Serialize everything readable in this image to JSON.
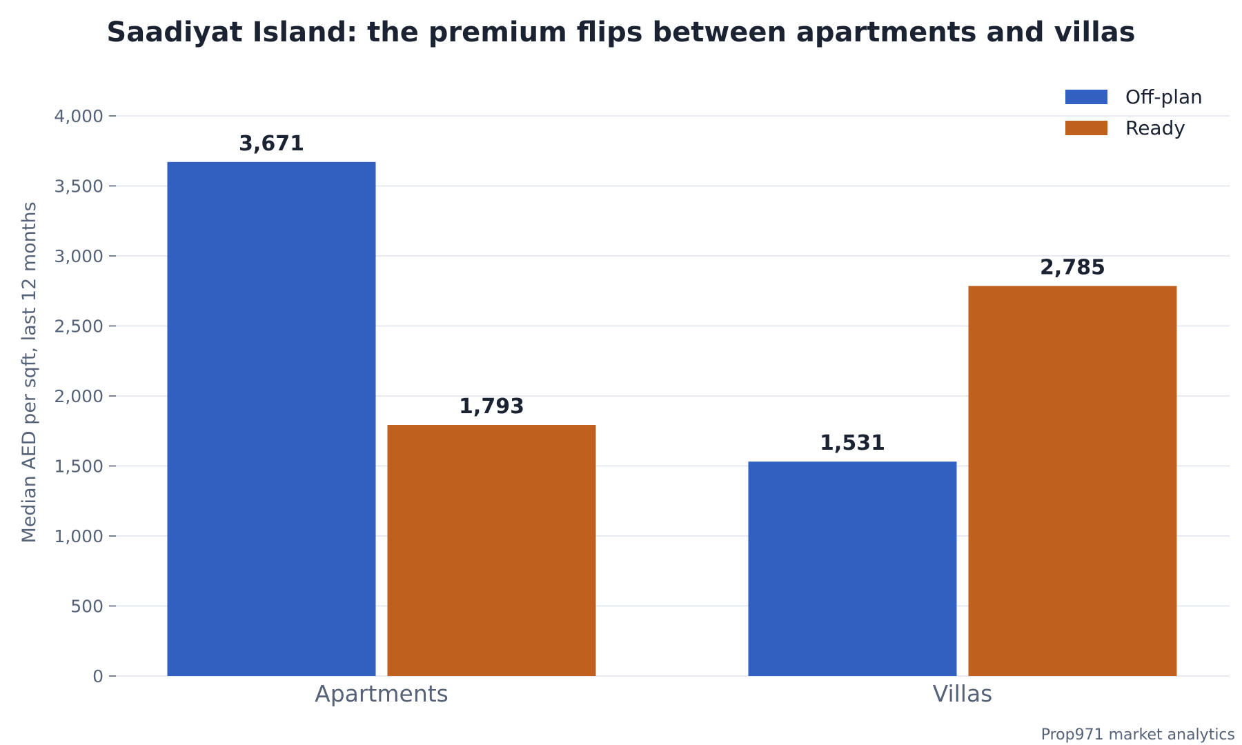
{
  "chart_data": {
    "type": "bar",
    "title": "Saadiyat Island: the premium flips between apartments and villas",
    "xlabel": "",
    "ylabel": "Median AED per sqft, last 12 months",
    "categories": [
      "Apartments",
      "Villas"
    ],
    "series": [
      {
        "name": "Off-plan",
        "values": [
          3671,
          1531
        ],
        "color": "#3160c0"
      },
      {
        "name": "Ready",
        "values": [
          1793,
          2785
        ],
        "color": "#c0601f"
      }
    ],
    "data_labels": [
      [
        "3,671",
        "1,531"
      ],
      [
        "1,793",
        "2,785"
      ]
    ],
    "ylim": [
      0,
      4000
    ],
    "yticks": [
      0,
      500,
      1000,
      1500,
      2000,
      2500,
      3000,
      3500,
      4000
    ],
    "ytick_labels": [
      "0",
      "500",
      "1,000",
      "1,500",
      "2,000",
      "2,500",
      "3,000",
      "3,500",
      "4,000"
    ],
    "grid": true,
    "legend_position": "top-right",
    "source": "Prop971 market analytics"
  }
}
